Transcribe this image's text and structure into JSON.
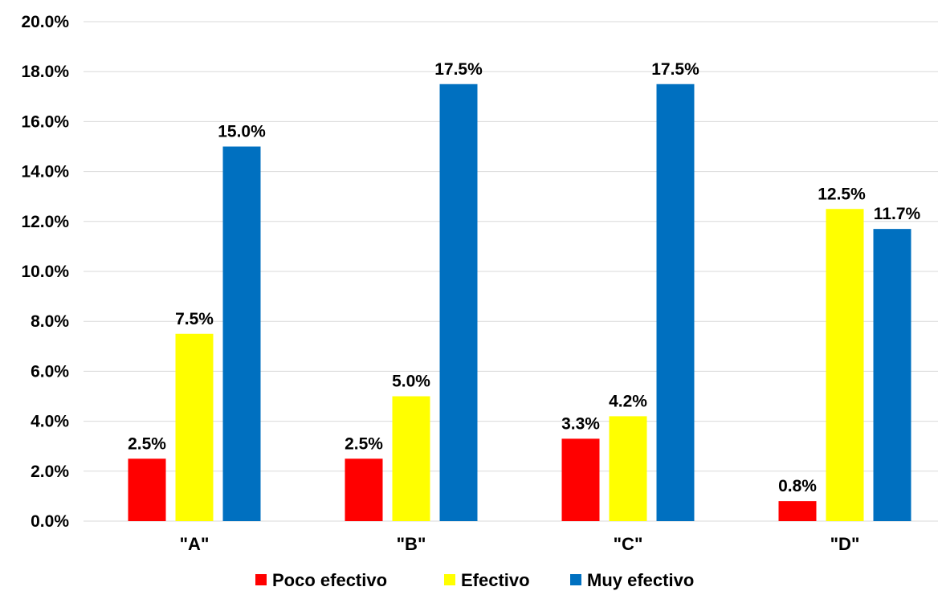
{
  "chart_data": {
    "type": "bar",
    "title": "",
    "xlabel": "",
    "ylabel": "",
    "ylim": [
      0,
      20
    ],
    "ytick_step": 2,
    "ytick_labels": [
      "0.0%",
      "2.0%",
      "4.0%",
      "6.0%",
      "8.0%",
      "10.0%",
      "12.0%",
      "14.0%",
      "16.0%",
      "18.0%",
      "20.0%"
    ],
    "grid": true,
    "legend_position": "bottom",
    "categories": [
      "\"A\"",
      "\"B\"",
      "\"C\"",
      "\"D\""
    ],
    "series": [
      {
        "name": "Poco efectivo",
        "color": "#ff0000",
        "values": [
          2.5,
          2.5,
          3.3,
          0.8
        ],
        "labels": [
          "2.5%",
          "2.5%",
          "3.3%",
          "0.8%"
        ]
      },
      {
        "name": "Efectivo",
        "color": "#ffff00",
        "values": [
          7.5,
          5.0,
          4.2,
          12.5
        ],
        "labels": [
          "7.5%",
          "5.0%",
          "4.2%",
          "12.5%"
        ]
      },
      {
        "name": "Muy efectivo",
        "color": "#0070c0",
        "values": [
          15.0,
          17.5,
          17.5,
          11.7
        ],
        "labels": [
          "15.0%",
          "17.5%",
          "17.5%",
          "11.7%"
        ]
      }
    ]
  }
}
